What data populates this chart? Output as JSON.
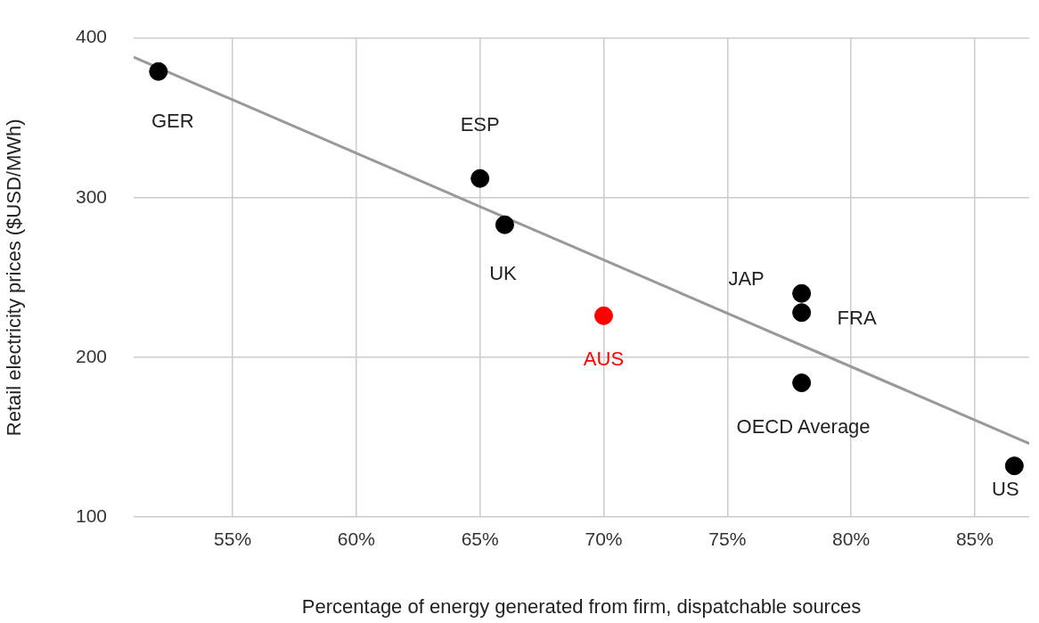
{
  "chart_data": {
    "type": "scatter",
    "xlabel": "Percentage of energy generated from firm, dispatchable sources",
    "ylabel": "Retail electricity prices ($USD/MWh)",
    "xlim": [
      51,
      87.2
    ],
    "ylim": [
      100,
      400
    ],
    "xticks": [
      {
        "value": 55,
        "label": "55%"
      },
      {
        "value": 60,
        "label": "60%"
      },
      {
        "value": 65,
        "label": "65%"
      },
      {
        "value": 70,
        "label": "70%"
      },
      {
        "value": 75,
        "label": "75%"
      },
      {
        "value": 80,
        "label": "80%"
      },
      {
        "value": 85,
        "label": "85%"
      }
    ],
    "yticks": [
      100,
      200,
      300,
      400
    ],
    "grid": true,
    "legend": false,
    "marker": "circle",
    "series": [
      {
        "x": [
          52,
          65,
          66,
          70,
          78,
          78,
          78,
          86.6
        ],
        "values": [
          379,
          312,
          283,
          226,
          240,
          228,
          184,
          132
        ],
        "colors": [
          "#000000",
          "#000000",
          "#000000",
          "#ff0000",
          "#000000",
          "#000000",
          "#000000",
          "#000000"
        ]
      },
      {
        "type": "line",
        "x": [
          51,
          87.2
        ],
        "values": [
          388,
          146
        ],
        "color": "#999999",
        "marker": "none",
        "line_style": "solid"
      }
    ],
    "annotations": [
      {
        "text": "GER",
        "x": 52,
        "y": 379
      },
      {
        "text": "ESP",
        "x": 65,
        "y": 312
      },
      {
        "text": "UK",
        "x": 66,
        "y": 283
      },
      {
        "text": "AUS",
        "x": 70,
        "y": 226
      },
      {
        "text": "JAP",
        "x": 78,
        "y": 240
      },
      {
        "text": "FRA",
        "x": 78,
        "y": 228
      },
      {
        "text": "OECD Average",
        "x": 78,
        "y": 184
      },
      {
        "text": "US",
        "x": 86.6,
        "y": 132
      }
    ]
  }
}
